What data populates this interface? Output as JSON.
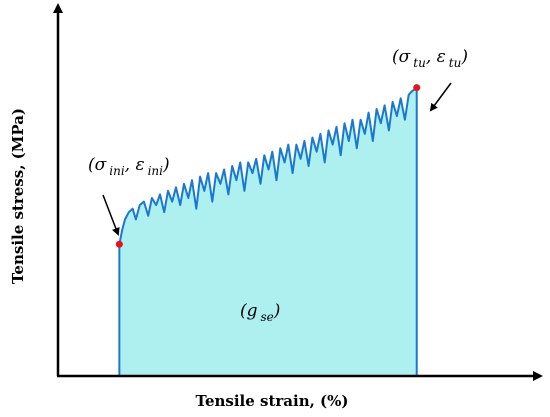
{
  "chart_data": {
    "type": "area",
    "title": "",
    "xlabel": "Tensile strain,  (%)",
    "ylabel": "Tensile stress,  (MPa)",
    "xlim": [
      0,
      100
    ],
    "ylim": [
      0,
      100
    ],
    "x_ticks": [],
    "y_ticks": [],
    "grid": false,
    "legend": "none",
    "series": [
      {
        "fill_color": "#aef0f0",
        "line_color": "#1a78d2",
        "points": [
          [
            13,
            37
          ],
          [
            13.6,
            41
          ],
          [
            14.2,
            44
          ],
          [
            15,
            46
          ],
          [
            15.8,
            47
          ],
          [
            16.5,
            44
          ],
          [
            17.3,
            48
          ],
          [
            18.2,
            49
          ],
          [
            19.1,
            45
          ],
          [
            19.9,
            50
          ],
          [
            20.8,
            48
          ],
          [
            21.6,
            51
          ],
          [
            22.5,
            46
          ],
          [
            23.3,
            52
          ],
          [
            24.2,
            49
          ],
          [
            25.0,
            53
          ],
          [
            25.9,
            48
          ],
          [
            26.7,
            54
          ],
          [
            27.6,
            50
          ],
          [
            28.4,
            55
          ],
          [
            29.3,
            47
          ],
          [
            30.1,
            56
          ],
          [
            31.0,
            52
          ],
          [
            31.8,
            57
          ],
          [
            32.7,
            49
          ],
          [
            33.5,
            57
          ],
          [
            34.4,
            54
          ],
          [
            35.2,
            58
          ],
          [
            36.1,
            51
          ],
          [
            36.9,
            59
          ],
          [
            37.8,
            55
          ],
          [
            38.6,
            60
          ],
          [
            39.5,
            52
          ],
          [
            40.3,
            60
          ],
          [
            41.2,
            57
          ],
          [
            42.0,
            61
          ],
          [
            42.9,
            54
          ],
          [
            43.7,
            62
          ],
          [
            44.6,
            58
          ],
          [
            45.4,
            63
          ],
          [
            46.3,
            55
          ],
          [
            47.1,
            64
          ],
          [
            48.0,
            60
          ],
          [
            48.8,
            65
          ],
          [
            49.7,
            57
          ],
          [
            50.5,
            65
          ],
          [
            51.4,
            61
          ],
          [
            52.2,
            66
          ],
          [
            53.1,
            59
          ],
          [
            53.9,
            67
          ],
          [
            54.8,
            63
          ],
          [
            55.6,
            68
          ],
          [
            56.5,
            60
          ],
          [
            57.3,
            69
          ],
          [
            58.2,
            65
          ],
          [
            59.0,
            70
          ],
          [
            59.9,
            62
          ],
          [
            60.7,
            71
          ],
          [
            61.6,
            66
          ],
          [
            62.4,
            72
          ],
          [
            63.3,
            64
          ],
          [
            64.1,
            72
          ],
          [
            65.0,
            68
          ],
          [
            65.8,
            74
          ],
          [
            66.7,
            66
          ],
          [
            67.5,
            75
          ],
          [
            68.4,
            71
          ],
          [
            69.2,
            76
          ],
          [
            70.1,
            69
          ],
          [
            70.9,
            77
          ],
          [
            71.8,
            73
          ],
          [
            72.6,
            78
          ],
          [
            73.5,
            72
          ],
          [
            74.3,
            79
          ],
          [
            75.0,
            80
          ],
          [
            76,
            81
          ]
        ]
      }
    ],
    "annotations": [
      {
        "base": "(σ",
        "sub1": "ini",
        "mid": ", ε",
        "sub2": "ini",
        "end": ")"
      },
      {
        "base": "(σ",
        "sub1": "tu",
        "mid": ", ε",
        "sub2": "tu",
        "end": ")"
      },
      {
        "base": "(g",
        "sub1": "se",
        "end": ")"
      }
    ]
  }
}
